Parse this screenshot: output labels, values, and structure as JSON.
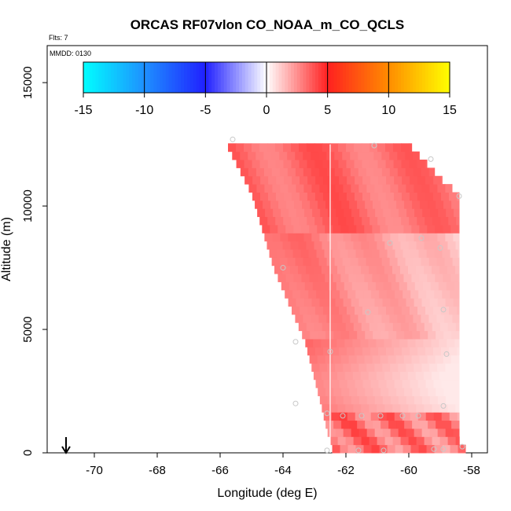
{
  "chart_data": {
    "type": "heatmap",
    "title": "ORCAS RF07vlon CO_NOAA_m_CO_QCLS",
    "annotations": {
      "flights": "Flts: 7",
      "date": "MMDD: 0130"
    },
    "xlabel": "Longitude (deg E)",
    "ylabel": "Altitude (m)",
    "xlim": [
      -71.5,
      -57.5
    ],
    "ylim": [
      0,
      16500
    ],
    "xticks": [
      -70,
      -68,
      -66,
      -64,
      -62,
      -60,
      -58
    ],
    "xtick_labels": [
      "-70",
      "-68",
      "-66",
      "-64",
      "-62",
      "-60",
      "-58"
    ],
    "yticks": [
      0,
      5000,
      10000,
      15000
    ],
    "ytick_labels": [
      "0",
      "5000",
      "10000",
      "15000"
    ],
    "colorbar": {
      "range": [
        -15,
        15
      ],
      "ticks": [
        -15,
        -10,
        -5,
        0,
        5,
        10,
        15
      ],
      "tick_labels": [
        "-15",
        "-10",
        "-5",
        "0",
        "5",
        "10",
        "15"
      ],
      "stops": [
        {
          "value": -15,
          "color": "#00ffff"
        },
        {
          "value": -10,
          "color": "#1e90ff"
        },
        {
          "value": -5,
          "color": "#2020ff"
        },
        {
          "value": 0,
          "color": "#ffffff"
        },
        {
          "value": 5,
          "color": "#ff2020"
        },
        {
          "value": 10,
          "color": "#ff8c00"
        },
        {
          "value": 15,
          "color": "#ffff00"
        }
      ]
    },
    "curtain": {
      "lon_min": -65.8,
      "lon_max": -58.3,
      "lon_step": 0.25,
      "alt_step": 330,
      "left_edge": [
        [
          -65.8,
          12500
        ],
        [
          -65.0,
          10500
        ],
        [
          -64.3,
          7500
        ],
        [
          -63.3,
          4500
        ],
        [
          -62.8,
          2000
        ],
        [
          -62.6,
          900
        ],
        [
          -62.4,
          0
        ]
      ],
      "right_edge": [
        [
          -60.0,
          12500
        ],
        [
          -58.9,
          11000
        ],
        [
          -58.4,
          10500
        ],
        [
          -58.4,
          500
        ],
        [
          -58.2,
          300
        ],
        [
          -58.2,
          0
        ]
      ],
      "value_range": [
        0.5,
        5.5
      ]
    },
    "white_line_lon": -62.5,
    "obs_points": [
      {
        "lon": -65.6,
        "alt": 12700
      },
      {
        "lon": -61.1,
        "alt": 12450
      },
      {
        "lon": -59.3,
        "alt": 11900
      },
      {
        "lon": -58.4,
        "alt": 10400
      },
      {
        "lon": -64.0,
        "alt": 7500
      },
      {
        "lon": -60.6,
        "alt": 8500
      },
      {
        "lon": -59.6,
        "alt": 8700
      },
      {
        "lon": -59.0,
        "alt": 8300
      },
      {
        "lon": -58.9,
        "alt": 5800
      },
      {
        "lon": -61.3,
        "alt": 5700
      },
      {
        "lon": -63.6,
        "alt": 4500
      },
      {
        "lon": -58.8,
        "alt": 4000
      },
      {
        "lon": -62.5,
        "alt": 4100
      },
      {
        "lon": -63.6,
        "alt": 2000
      },
      {
        "lon": -62.6,
        "alt": 1600
      },
      {
        "lon": -62.1,
        "alt": 1500
      },
      {
        "lon": -61.5,
        "alt": 1500
      },
      {
        "lon": -60.9,
        "alt": 1500
      },
      {
        "lon": -60.2,
        "alt": 1500
      },
      {
        "lon": -59.7,
        "alt": 1500
      },
      {
        "lon": -58.9,
        "alt": 1900
      },
      {
        "lon": -61.6,
        "alt": 100
      },
      {
        "lon": -60.8,
        "alt": 100
      },
      {
        "lon": -59.2,
        "alt": 150
      },
      {
        "lon": -58.9,
        "alt": 150
      },
      {
        "lon": -58.3,
        "alt": 250
      },
      {
        "lon": -62.6,
        "alt": 100
      }
    ],
    "takeoff_arrow_lon": -70.9
  }
}
